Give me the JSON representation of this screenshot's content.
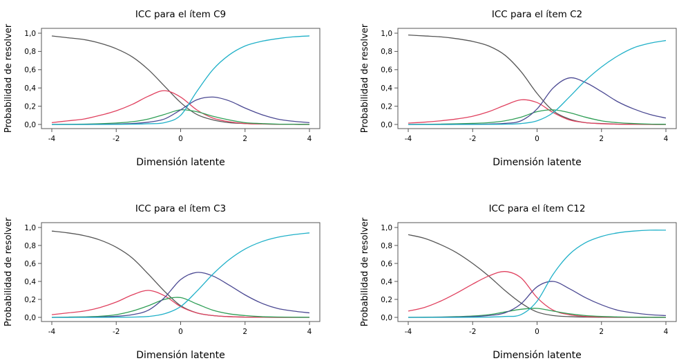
{
  "colors": {
    "cat0": "#555555",
    "cat1": "#e0405e",
    "cat2": "#2e9e55",
    "cat3": "#4a4892",
    "cat4": "#1fb0c8"
  },
  "chart_data": [
    {
      "type": "line",
      "title": "ICC para el ítem C9",
      "xlabel": "Dimensión latente",
      "ylabel": "Probabilidad de resolver",
      "xlim": [
        -4,
        4
      ],
      "ylim": [
        0,
        1
      ],
      "xticks": [
        -4,
        -2,
        0,
        2,
        4
      ],
      "xtick_labels": [
        "-4",
        "-2",
        "0",
        "2",
        "4"
      ],
      "yticks": [
        0,
        0.2,
        0.4,
        0.6,
        0.8,
        1.0
      ],
      "ytick_labels": [
        "0,0",
        "0,2",
        "0,4",
        "0,6",
        "0,8",
        "1,0"
      ],
      "x": [
        -4,
        -3.5,
        -3,
        -2.5,
        -2,
        -1.5,
        -1,
        -0.5,
        0,
        0.5,
        1,
        1.5,
        2,
        2.5,
        3,
        3.5,
        4
      ],
      "series": [
        {
          "color_key": "cat0",
          "values": [
            0.97,
            0.95,
            0.93,
            0.89,
            0.83,
            0.74,
            0.6,
            0.42,
            0.24,
            0.11,
            0.05,
            0.02,
            0.01,
            0.005,
            0.002,
            0.001,
            0.0
          ]
        },
        {
          "color_key": "cat1",
          "values": [
            0.02,
            0.04,
            0.06,
            0.1,
            0.15,
            0.22,
            0.31,
            0.37,
            0.3,
            0.16,
            0.07,
            0.03,
            0.01,
            0.005,
            0.002,
            0.001,
            0.0
          ]
        },
        {
          "color_key": "cat2",
          "values": [
            0.0,
            0.002,
            0.004,
            0.008,
            0.016,
            0.03,
            0.06,
            0.11,
            0.16,
            0.14,
            0.09,
            0.05,
            0.02,
            0.01,
            0.004,
            0.002,
            0.001
          ]
        },
        {
          "color_key": "cat3",
          "values": [
            0.0,
            0.0,
            0.0,
            0.002,
            0.005,
            0.01,
            0.025,
            0.06,
            0.16,
            0.27,
            0.3,
            0.26,
            0.18,
            0.11,
            0.06,
            0.035,
            0.02
          ]
        },
        {
          "color_key": "cat4",
          "values": [
            0.0,
            0.0,
            0.0,
            0.0,
            0.001,
            0.003,
            0.008,
            0.02,
            0.1,
            0.36,
            0.6,
            0.76,
            0.86,
            0.91,
            0.94,
            0.96,
            0.97
          ]
        }
      ]
    },
    {
      "type": "line",
      "title": "ICC para el ítem C2",
      "xlabel": "Dimensión latente",
      "ylabel": "Probabilidad de resolver",
      "xlim": [
        -4,
        4
      ],
      "ylim": [
        0,
        1
      ],
      "xticks": [
        -4,
        -2,
        0,
        2,
        4
      ],
      "xtick_labels": [
        "-4",
        "-2",
        "0",
        "2",
        "4"
      ],
      "yticks": [
        0,
        0.2,
        0.4,
        0.6,
        0.8,
        1.0
      ],
      "ytick_labels": [
        "0,0",
        "0,2",
        "0,4",
        "0,6",
        "0,8",
        "1,0"
      ],
      "x": [
        -4,
        -3.5,
        -3,
        -2.5,
        -2,
        -1.5,
        -1,
        -0.5,
        0,
        0.5,
        1,
        1.5,
        2,
        2.5,
        3,
        3.5,
        4
      ],
      "series": [
        {
          "color_key": "cat0",
          "values": [
            0.98,
            0.97,
            0.96,
            0.94,
            0.91,
            0.86,
            0.76,
            0.58,
            0.34,
            0.15,
            0.06,
            0.02,
            0.01,
            0.004,
            0.002,
            0.001,
            0.0
          ]
        },
        {
          "color_key": "cat1",
          "values": [
            0.015,
            0.025,
            0.04,
            0.06,
            0.09,
            0.14,
            0.21,
            0.27,
            0.24,
            0.13,
            0.05,
            0.02,
            0.008,
            0.003,
            0.001,
            0.0,
            0.0
          ]
        },
        {
          "color_key": "cat2",
          "values": [
            0.0,
            0.002,
            0.004,
            0.007,
            0.012,
            0.02,
            0.04,
            0.08,
            0.14,
            0.16,
            0.13,
            0.08,
            0.04,
            0.02,
            0.01,
            0.004,
            0.002
          ]
        },
        {
          "color_key": "cat3",
          "values": [
            0.0,
            0.0,
            0.0,
            0.001,
            0.002,
            0.005,
            0.012,
            0.04,
            0.17,
            0.4,
            0.51,
            0.46,
            0.36,
            0.25,
            0.17,
            0.11,
            0.07
          ]
        },
        {
          "color_key": "cat4",
          "values": [
            0.0,
            0.0,
            0.0,
            0.0,
            0.0,
            0.001,
            0.003,
            0.01,
            0.04,
            0.13,
            0.3,
            0.48,
            0.63,
            0.75,
            0.84,
            0.89,
            0.92
          ]
        }
      ]
    },
    {
      "type": "line",
      "title": "ICC para el ítem C3",
      "xlabel": "Dimensión latente",
      "ylabel": "Probabilidad de resolver",
      "xlim": [
        -4,
        4
      ],
      "ylim": [
        0,
        1
      ],
      "xticks": [
        -4,
        -2,
        0,
        2,
        4
      ],
      "xtick_labels": [
        "-4",
        "-2",
        "0",
        "2",
        "4"
      ],
      "yticks": [
        0,
        0.2,
        0.4,
        0.6,
        0.8,
        1.0
      ],
      "ytick_labels": [
        "0,0",
        "0,2",
        "0,4",
        "0,6",
        "0,8",
        "1,0"
      ],
      "x": [
        -4,
        -3.5,
        -3,
        -2.5,
        -2,
        -1.5,
        -1,
        -0.5,
        0,
        0.5,
        1,
        1.5,
        2,
        2.5,
        3,
        3.5,
        4
      ],
      "series": [
        {
          "color_key": "cat0",
          "values": [
            0.96,
            0.94,
            0.91,
            0.86,
            0.78,
            0.66,
            0.48,
            0.29,
            0.13,
            0.05,
            0.02,
            0.008,
            0.003,
            0.001,
            0.0,
            0.0,
            0.0
          ]
        },
        {
          "color_key": "cat1",
          "values": [
            0.03,
            0.05,
            0.07,
            0.11,
            0.17,
            0.25,
            0.3,
            0.24,
            0.12,
            0.05,
            0.02,
            0.008,
            0.003,
            0.001,
            0.0,
            0.0,
            0.0
          ]
        },
        {
          "color_key": "cat2",
          "values": [
            0.0,
            0.003,
            0.006,
            0.012,
            0.03,
            0.07,
            0.13,
            0.2,
            0.22,
            0.15,
            0.08,
            0.04,
            0.02,
            0.008,
            0.004,
            0.002,
            0.001
          ]
        },
        {
          "color_key": "cat3",
          "values": [
            0.0,
            0.0,
            0.002,
            0.005,
            0.012,
            0.03,
            0.08,
            0.22,
            0.42,
            0.5,
            0.46,
            0.36,
            0.25,
            0.16,
            0.1,
            0.07,
            0.05
          ]
        },
        {
          "color_key": "cat4",
          "values": [
            0.0,
            0.0,
            0.0,
            0.0,
            0.001,
            0.003,
            0.01,
            0.04,
            0.12,
            0.29,
            0.48,
            0.64,
            0.76,
            0.84,
            0.89,
            0.92,
            0.94
          ]
        }
      ]
    },
    {
      "type": "line",
      "title": "ICC para el ítem C12",
      "xlabel": "Dimensión latente",
      "ylabel": "Probabilidad de resolver",
      "xlim": [
        -4,
        4
      ],
      "ylim": [
        0,
        1
      ],
      "xticks": [
        -4,
        -2,
        0,
        2,
        4
      ],
      "xtick_labels": [
        "-4",
        "-2",
        "0",
        "2",
        "4"
      ],
      "yticks": [
        0,
        0.2,
        0.4,
        0.6,
        0.8,
        1.0
      ],
      "ytick_labels": [
        "0,0",
        "0,2",
        "0,4",
        "0,6",
        "0,8",
        "1,0"
      ],
      "x": [
        -4,
        -3.5,
        -3,
        -2.5,
        -2,
        -1.5,
        -1,
        -0.5,
        0,
        0.5,
        1,
        1.5,
        2,
        2.5,
        3,
        3.5,
        4
      ],
      "series": [
        {
          "color_key": "cat0",
          "values": [
            0.92,
            0.88,
            0.81,
            0.72,
            0.6,
            0.46,
            0.3,
            0.16,
            0.06,
            0.02,
            0.008,
            0.003,
            0.001,
            0.0,
            0.0,
            0.0,
            0.0
          ]
        },
        {
          "color_key": "cat1",
          "values": [
            0.07,
            0.11,
            0.18,
            0.27,
            0.37,
            0.46,
            0.51,
            0.44,
            0.22,
            0.08,
            0.03,
            0.01,
            0.004,
            0.002,
            0.001,
            0.0,
            0.0
          ]
        },
        {
          "color_key": "cat2",
          "values": [
            0.0,
            0.002,
            0.004,
            0.008,
            0.015,
            0.03,
            0.06,
            0.09,
            0.1,
            0.07,
            0.04,
            0.02,
            0.01,
            0.005,
            0.002,
            0.001,
            0.0
          ]
        },
        {
          "color_key": "cat3",
          "values": [
            0.0,
            0.0,
            0.002,
            0.004,
            0.008,
            0.02,
            0.05,
            0.15,
            0.34,
            0.4,
            0.32,
            0.22,
            0.14,
            0.08,
            0.05,
            0.03,
            0.02
          ]
        },
        {
          "color_key": "cat4",
          "values": [
            0.0,
            0.0,
            0.0,
            0.0,
            0.001,
            0.003,
            0.01,
            0.03,
            0.18,
            0.48,
            0.7,
            0.83,
            0.9,
            0.94,
            0.96,
            0.97,
            0.97
          ]
        }
      ]
    }
  ]
}
